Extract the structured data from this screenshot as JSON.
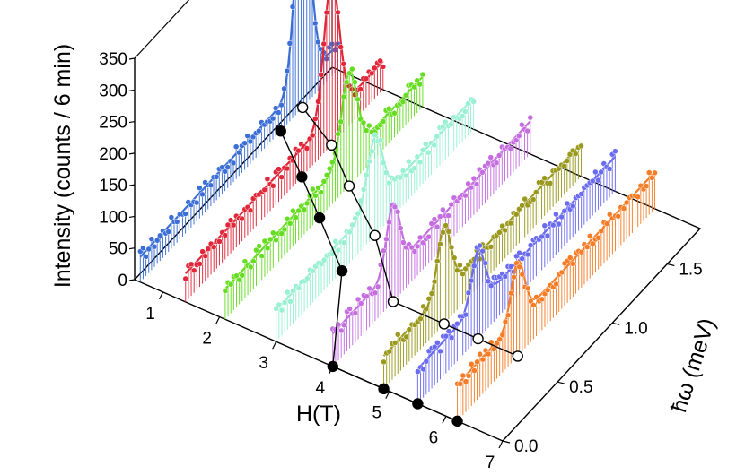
{
  "chart_data": {
    "type": "line",
    "projection": "3d-waterfall",
    "axes": {
      "z": {
        "label": "Intensity (counts / 6 min)",
        "ticks": [
          "0",
          "50",
          "100",
          "150",
          "200",
          "250",
          "300",
          "350"
        ],
        "range": [
          0,
          350
        ]
      },
      "h": {
        "label": "H(T)",
        "ticks": [
          "1",
          "2",
          "3",
          "4",
          "5",
          "6",
          "7"
        ],
        "range": [
          0.5,
          7
        ]
      },
      "w": {
        "label": "ħω (meV)",
        "ticks": [
          "0.0",
          "0.5",
          "1.0",
          "1.5"
        ],
        "range": [
          0,
          1.8
        ]
      }
    },
    "series": [
      {
        "field": 0.6,
        "color": "#3c6fd6",
        "peak_energy": 1.48,
        "peak_height": 340,
        "width": 0.07,
        "background": 40
      },
      {
        "field": 1.4,
        "color": "#e0283a",
        "peak_energy": 1.33,
        "peak_height": 260,
        "width": 0.07,
        "background": 45
      },
      {
        "field": 2.1,
        "color": "#66dd22",
        "peak_energy": 1.13,
        "peak_height": 180,
        "width": 0.07,
        "background": 48
      },
      {
        "field": 3.0,
        "color": "#99f0d2",
        "peak_energy": 0.9,
        "peak_height": 155,
        "width": 0.07,
        "background": 50
      },
      {
        "field": 4.0,
        "color": "#c46ee0",
        "peak_energy": 0.55,
        "peak_height": 155,
        "width": 0.06,
        "background": 52
      },
      {
        "field": 4.9,
        "color": "#9a991e",
        "peak_energy": 0.55,
        "peak_height": 155,
        "width": 0.06,
        "background": 52
      },
      {
        "field": 5.5,
        "color": "#6b6bf0",
        "peak_energy": 0.55,
        "peak_height": 140,
        "width": 0.06,
        "background": 55
      },
      {
        "field": 6.2,
        "color": "#f57d27",
        "peak_energy": 0.55,
        "peak_height": 150,
        "width": 0.06,
        "background": 58
      }
    ],
    "open_circles": [
      {
        "field": 0.6,
        "energy": 1.48
      },
      {
        "field": 1.4,
        "energy": 1.33
      },
      {
        "field": 2.1,
        "energy": 1.13
      },
      {
        "field": 3.0,
        "energy": 0.9
      },
      {
        "field": 4.0,
        "energy": 0.55
      },
      {
        "field": 4.9,
        "energy": 0.55
      },
      {
        "field": 5.5,
        "energy": 0.55
      },
      {
        "field": 6.2,
        "energy": 0.55
      }
    ],
    "filled_circles": [
      {
        "field": 0.6,
        "energy": 1.28
      },
      {
        "field": 1.4,
        "energy": 1.06
      },
      {
        "field": 2.1,
        "energy": 0.86
      },
      {
        "field": 3.0,
        "energy": 0.6
      },
      {
        "field": 4.0,
        "energy": 0.0
      },
      {
        "field": 4.9,
        "energy": 0.0
      },
      {
        "field": 5.5,
        "energy": 0.0
      },
      {
        "field": 6.2,
        "energy": 0.0
      }
    ]
  }
}
